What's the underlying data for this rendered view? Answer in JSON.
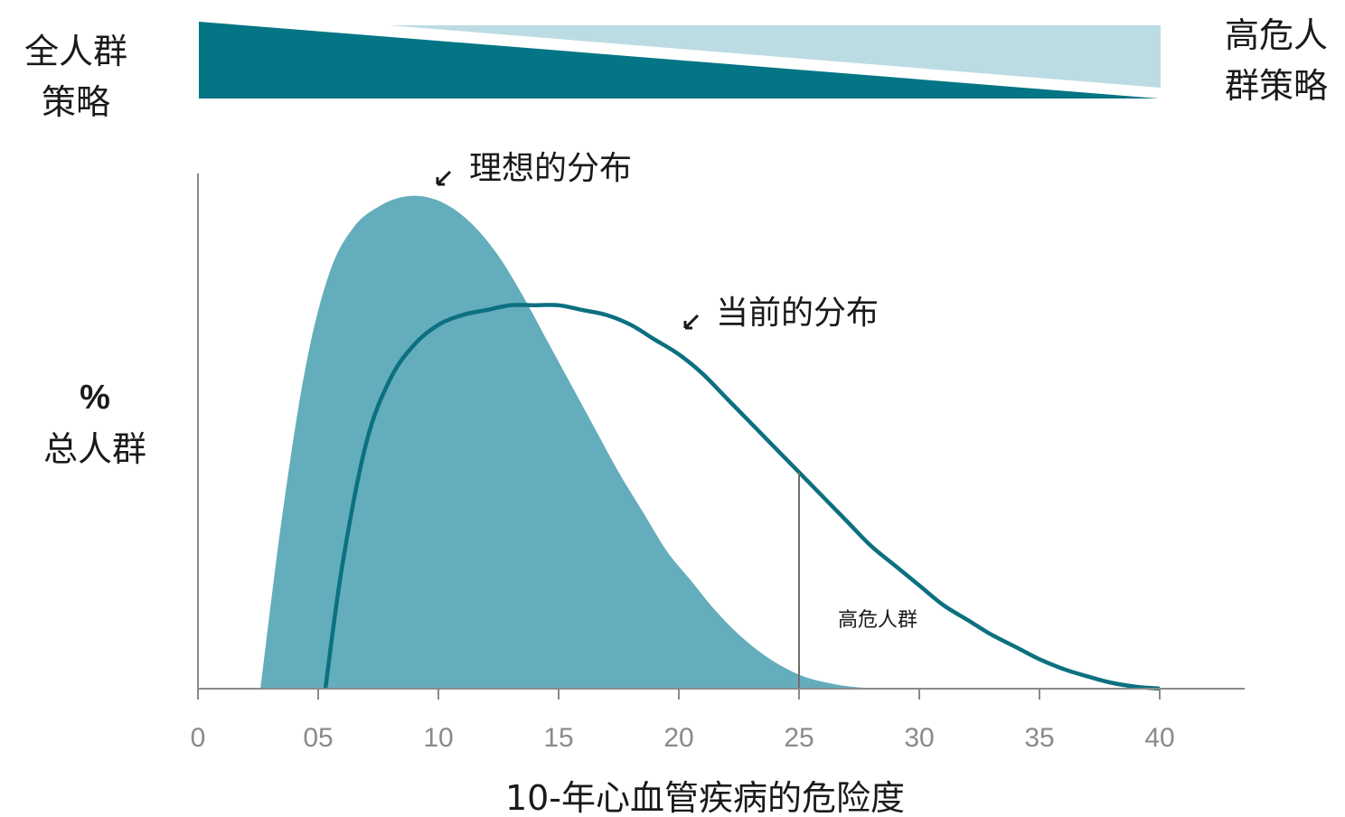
{
  "strategy": {
    "left_line1": "全人群",
    "left_line2": "策略",
    "right_line1": "高危人",
    "right_line2": "群策略"
  },
  "colors": {
    "dark_teal": "#047584",
    "light_teal": "#bcdce3",
    "fill_teal": "#63adbc",
    "curve_teal": "#0c7080",
    "axis": "#8a8a8a",
    "text": "#1a1a1a"
  },
  "chart_data": {
    "type": "area",
    "xlabel": "10-年心血管疾病的危险度",
    "ylabel_line1": "%",
    "ylabel_line2": "总人群",
    "xlim": [
      0,
      43
    ],
    "ylim": [
      0,
      1
    ],
    "x_ticks": [
      0,
      5,
      10,
      15,
      20,
      25,
      30,
      35,
      40
    ],
    "x_tick_labels": [
      "0",
      "05",
      "10",
      "15",
      "20",
      "25",
      "30",
      "35",
      "40"
    ],
    "threshold_x": 25,
    "threshold_label": "高危人群",
    "series": [
      {
        "name": "理想的分布",
        "style": "filled",
        "points": [
          [
            2.6,
            0
          ],
          [
            3.5,
            0.35
          ],
          [
            4.5,
            0.66
          ],
          [
            5.5,
            0.85
          ],
          [
            6.5,
            0.94
          ],
          [
            7.5,
            0.98
          ],
          [
            8.5,
            1.0
          ],
          [
            9.5,
            1.0
          ],
          [
            10.5,
            0.98
          ],
          [
            11.5,
            0.94
          ],
          [
            12.5,
            0.88
          ],
          [
            13.5,
            0.8
          ],
          [
            14.5,
            0.71
          ],
          [
            15.5,
            0.62
          ],
          [
            16.5,
            0.53
          ],
          [
            17.5,
            0.44
          ],
          [
            18.5,
            0.36
          ],
          [
            19.5,
            0.28
          ],
          [
            20.5,
            0.22
          ],
          [
            21.5,
            0.16
          ],
          [
            22.5,
            0.11
          ],
          [
            23.5,
            0.07
          ],
          [
            24.5,
            0.04
          ],
          [
            25.5,
            0.02
          ],
          [
            27,
            0.005
          ],
          [
            28.4,
            0
          ]
        ]
      },
      {
        "name": "当前的分布",
        "style": "line",
        "points": [
          [
            5.3,
            0
          ],
          [
            6,
            0.25
          ],
          [
            7,
            0.5
          ],
          [
            8,
            0.63
          ],
          [
            9,
            0.7
          ],
          [
            10,
            0.74
          ],
          [
            11,
            0.76
          ],
          [
            12,
            0.77
          ],
          [
            13,
            0.78
          ],
          [
            14,
            0.78
          ],
          [
            15,
            0.78
          ],
          [
            16,
            0.77
          ],
          [
            17,
            0.76
          ],
          [
            18,
            0.74
          ],
          [
            19,
            0.71
          ],
          [
            20,
            0.68
          ],
          [
            21,
            0.64
          ],
          [
            22,
            0.59
          ],
          [
            23,
            0.54
          ],
          [
            24,
            0.49
          ],
          [
            25,
            0.44
          ],
          [
            26,
            0.39
          ],
          [
            27,
            0.34
          ],
          [
            28,
            0.29
          ],
          [
            29,
            0.25
          ],
          [
            30,
            0.21
          ],
          [
            31,
            0.17
          ],
          [
            32,
            0.14
          ],
          [
            33,
            0.11
          ],
          [
            34,
            0.085
          ],
          [
            35,
            0.06
          ],
          [
            36,
            0.04
          ],
          [
            37,
            0.025
          ],
          [
            38,
            0.012
          ],
          [
            39,
            0.004
          ],
          [
            40,
            0
          ]
        ]
      }
    ]
  }
}
